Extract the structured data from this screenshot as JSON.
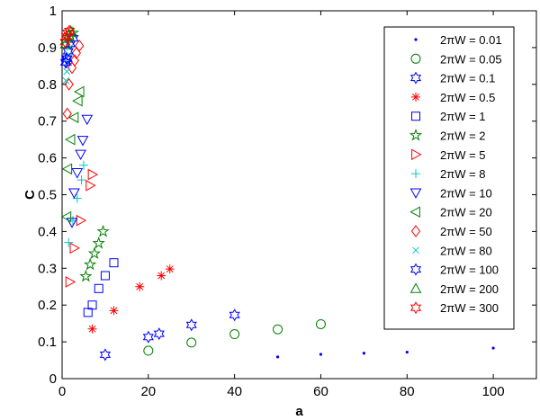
{
  "chart_data": {
    "type": "scatter",
    "title": "",
    "xlabel": "a",
    "ylabel": "C",
    "xlim": [
      0,
      110
    ],
    "ylim": [
      0,
      1
    ],
    "xticks": [
      "0",
      "20",
      "40",
      "60",
      "80",
      "100"
    ],
    "yticks": [
      "0",
      "0.1",
      "0.2",
      "0.3",
      "0.4",
      "0.5",
      "0.6",
      "0.7",
      "0.8",
      "0.9",
      "1"
    ],
    "grid": false,
    "legend_position": "top-right",
    "series": [
      {
        "name": "2πW = 0.01",
        "marker": "dot",
        "color": "#0000ff",
        "points": [
          [
            50,
            0.059
          ],
          [
            60,
            0.066
          ],
          [
            70,
            0.069
          ],
          [
            80,
            0.072
          ],
          [
            100,
            0.083
          ]
        ]
      },
      {
        "name": "2πW = 0.05",
        "marker": "circle",
        "color": "#008000",
        "points": [
          [
            20,
            0.076
          ],
          [
            30,
            0.098
          ],
          [
            40,
            0.121
          ],
          [
            50,
            0.134
          ],
          [
            60,
            0.148
          ]
        ]
      },
      {
        "name": "2πW = 0.1",
        "marker": "hexagram",
        "color": "#0000ff",
        "points": [
          [
            10,
            0.065
          ],
          [
            20,
            0.113
          ],
          [
            22.5,
            0.122
          ],
          [
            30,
            0.146
          ],
          [
            40,
            0.173
          ],
          [
            1,
            0.86
          ],
          [
            1.2,
            0.87
          ]
        ]
      },
      {
        "name": "2πW = 0.5",
        "marker": "asterisk",
        "color": "#ff0000",
        "points": [
          [
            7,
            0.135
          ],
          [
            12,
            0.185
          ],
          [
            18,
            0.25
          ],
          [
            23,
            0.28
          ],
          [
            25,
            0.298
          ]
        ]
      },
      {
        "name": "2πW = 1",
        "marker": "square",
        "color": "#0000ff",
        "points": [
          [
            6,
            0.18
          ],
          [
            7,
            0.2
          ],
          [
            8.5,
            0.245
          ],
          [
            10,
            0.28
          ],
          [
            12,
            0.315
          ]
        ]
      },
      {
        "name": "2πW = 2",
        "marker": "pentagram",
        "color": "#008000",
        "points": [
          [
            5.5,
            0.278
          ],
          [
            6.5,
            0.31
          ],
          [
            7.5,
            0.34
          ],
          [
            8.5,
            0.368
          ],
          [
            9.5,
            0.4
          ],
          [
            2,
            0.93
          ],
          [
            2.5,
            0.94
          ]
        ]
      },
      {
        "name": "2πW = 5",
        "marker": "triangle-right",
        "color": "#ff0000",
        "points": [
          [
            1.8,
            0.263
          ],
          [
            2.8,
            0.355
          ],
          [
            4.3,
            0.43
          ],
          [
            6.5,
            0.525
          ],
          [
            7,
            0.555
          ]
        ]
      },
      {
        "name": "2πW = 8",
        "marker": "plus",
        "color": "#00c8c8",
        "points": [
          [
            1.5,
            0.37
          ],
          [
            2.5,
            0.43
          ],
          [
            3.5,
            0.49
          ],
          [
            4.5,
            0.54
          ],
          [
            5,
            0.58
          ]
        ]
      },
      {
        "name": "2πW = 10",
        "marker": "triangle-down",
        "color": "#0000ff",
        "points": [
          [
            2.3,
            0.425
          ],
          [
            2.8,
            0.505
          ],
          [
            3.5,
            0.56
          ],
          [
            4.3,
            0.61
          ],
          [
            4.8,
            0.648
          ],
          [
            5.8,
            0.705
          ]
        ]
      },
      {
        "name": "2πW = 20",
        "marker": "triangle-left",
        "color": "#008000",
        "points": [
          [
            1.1,
            0.44
          ],
          [
            1.3,
            0.57
          ],
          [
            2,
            0.65
          ],
          [
            2.8,
            0.71
          ],
          [
            3.7,
            0.755
          ],
          [
            4.1,
            0.78
          ]
        ]
      },
      {
        "name": "2πW = 50",
        "marker": "diamond",
        "color": "#ff0000",
        "points": [
          [
            1.2,
            0.72
          ],
          [
            1.6,
            0.8
          ],
          [
            2.3,
            0.845
          ],
          [
            2.9,
            0.865
          ],
          [
            3.3,
            0.885
          ],
          [
            4,
            0.905
          ]
        ]
      },
      {
        "name": "2πW = 80",
        "marker": "x",
        "color": "#00c8c8",
        "points": [
          [
            0.9,
            0.81
          ],
          [
            1.1,
            0.835
          ],
          [
            1.3,
            0.86
          ],
          [
            1.5,
            0.88
          ],
          [
            1.8,
            0.9
          ]
        ]
      },
      {
        "name": "2πW = 100",
        "marker": "hexagram",
        "color": "#0000ff",
        "points": [
          [
            0.8,
            0.86
          ],
          [
            1,
            0.87
          ],
          [
            1.4,
            0.89
          ],
          [
            1.9,
            0.91
          ],
          [
            2.6,
            0.925
          ]
        ]
      },
      {
        "name": "2πW = 200",
        "marker": "triangle-up",
        "color": "#008000",
        "points": [
          [
            0.8,
            0.91
          ],
          [
            1.1,
            0.925
          ],
          [
            1.5,
            0.935
          ],
          [
            2,
            0.945
          ]
        ]
      },
      {
        "name": "2πW = 300",
        "marker": "hexagram",
        "color": "#ff0000",
        "points": [
          [
            0.7,
            0.915
          ],
          [
            1,
            0.93
          ],
          [
            1.3,
            0.94
          ],
          [
            1.7,
            0.945
          ]
        ]
      }
    ]
  }
}
